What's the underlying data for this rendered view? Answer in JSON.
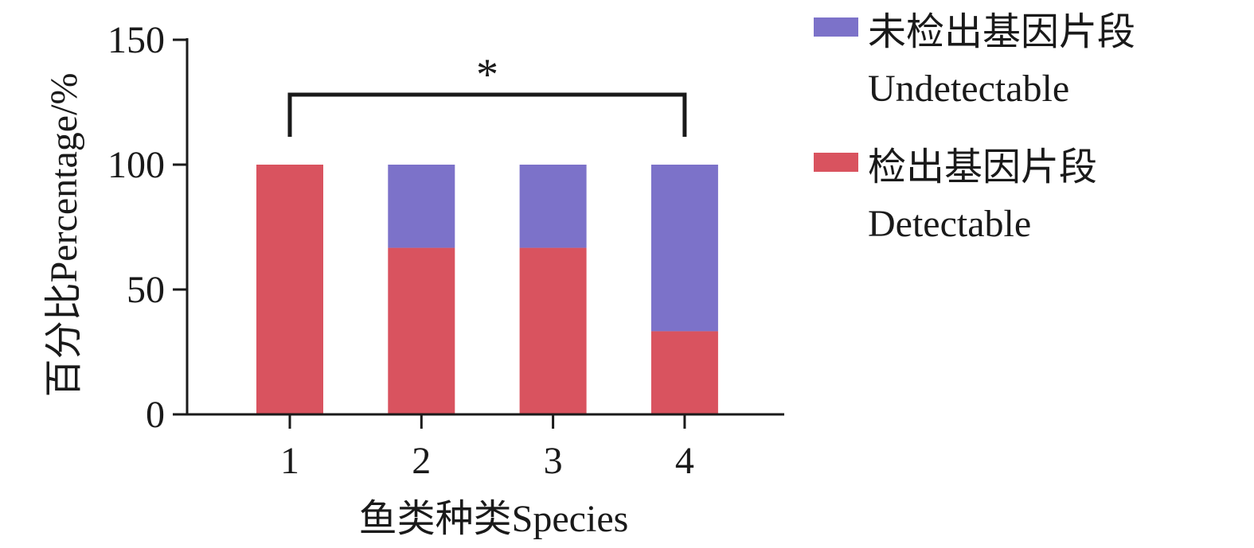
{
  "chart_data": {
    "type": "bar",
    "stacked": true,
    "categories": [
      "1",
      "2",
      "3",
      "4"
    ],
    "series": [
      {
        "name": "检出基因片段 Detectable",
        "values": [
          100,
          66.7,
          66.7,
          33.3
        ],
        "color": "#d9535f"
      },
      {
        "name": "未检出基因片段 Undetectable",
        "values": [
          0,
          33.3,
          33.3,
          66.7
        ],
        "color": "#7c72c9"
      }
    ],
    "title": "",
    "xlabel": "鱼类种类Species",
    "ylabel": "百分比Percentage/%",
    "ylim": [
      0,
      150
    ],
    "yticks": [
      0,
      50,
      100,
      150
    ],
    "grid": false,
    "legend_position": "right",
    "legend": [
      {
        "line1": "未检出基因片段",
        "line2": "Undetectable",
        "color": "#7c72c9"
      },
      {
        "line1": "检出基因片段",
        "line2": "Detectable",
        "color": "#d9535f"
      }
    ],
    "significance": {
      "from": "1",
      "to": "4",
      "label": "*"
    }
  }
}
